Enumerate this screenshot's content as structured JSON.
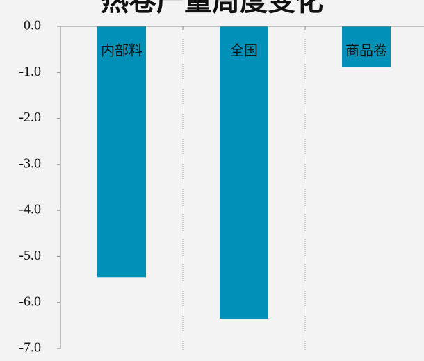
{
  "chart_data": {
    "type": "bar",
    "title": "热卷产量周度变化",
    "categories": [
      "内部料",
      "全国",
      "商品卷"
    ],
    "values": [
      -5.45,
      -6.35,
      -0.88
    ],
    "color": "#0090b8",
    "ylim": [
      -7,
      0
    ],
    "yticks": [
      {
        "value": 0,
        "label": "0.0"
      },
      {
        "value": -1,
        "label": "-1.0"
      },
      {
        "value": -2,
        "label": "-2.0"
      },
      {
        "value": -3,
        "label": "-3.0"
      },
      {
        "value": -4,
        "label": "-4.0"
      },
      {
        "value": -5,
        "label": "-5.0"
      },
      {
        "value": -6,
        "label": "-6.0"
      },
      {
        "value": -7,
        "label": "-7.0"
      }
    ]
  }
}
